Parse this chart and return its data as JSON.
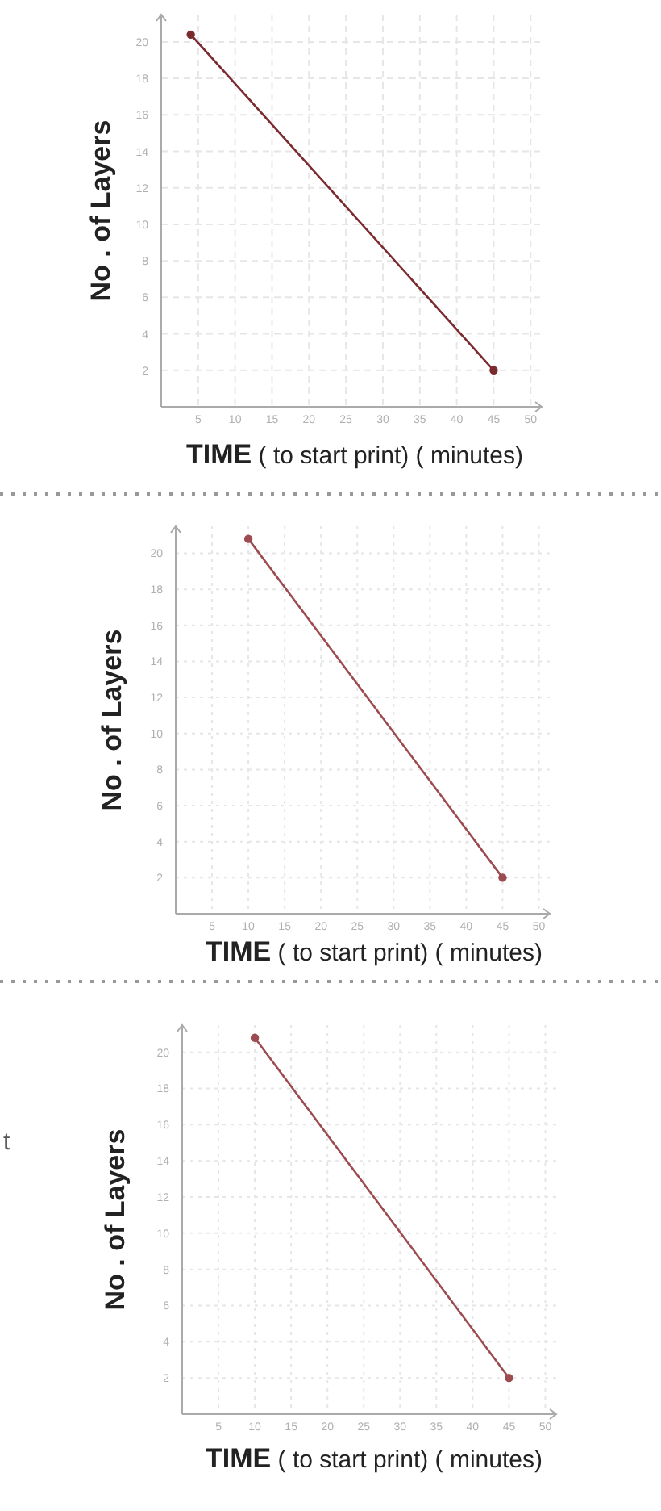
{
  "chart_data": [
    {
      "type": "line",
      "xlabel": "TIME ( to start print) ( minutes)",
      "ylabel": "No . of Layers",
      "xlim": [
        0,
        51.5
      ],
      "ylim": [
        0,
        21.5
      ],
      "xticks": [
        5,
        10,
        15,
        20,
        25,
        30,
        35,
        40,
        45,
        50
      ],
      "yticks": [
        2,
        4,
        6,
        8,
        10,
        12,
        14,
        16,
        18,
        20
      ],
      "grid": true,
      "marker": "circle",
      "line_style": "solid",
      "series": [
        {
          "color": "#7b2b2e",
          "x": [
            4,
            45
          ],
          "values": [
            20.4,
            2
          ]
        }
      ]
    },
    {
      "type": "line",
      "xlabel": "TIME ( to start print) ( minutes)",
      "ylabel": "No . of Layers",
      "xlim": [
        0,
        51.5
      ],
      "ylim": [
        0,
        21.5
      ],
      "xticks": [
        5,
        10,
        15,
        20,
        25,
        30,
        35,
        40,
        45,
        50
      ],
      "yticks": [
        2,
        4,
        6,
        8,
        10,
        12,
        14,
        16,
        18,
        20
      ],
      "grid": true,
      "marker": "circle",
      "line_style": "solid",
      "series": [
        {
          "color": "#9c4c50",
          "x": [
            10,
            45
          ],
          "values": [
            20.8,
            2
          ]
        }
      ]
    },
    {
      "type": "line",
      "xlabel": "TIME ( to start print) ( minutes)",
      "ylabel": "No . of Layers",
      "xlim": [
        0,
        51.5
      ],
      "ylim": [
        0,
        21.5
      ],
      "xticks": [
        5,
        10,
        15,
        20,
        25,
        30,
        35,
        40,
        45,
        50
      ],
      "yticks": [
        2,
        4,
        6,
        8,
        10,
        12,
        14,
        16,
        18,
        20
      ],
      "grid": true,
      "marker": "circle",
      "line_style": "solid",
      "annotations": [
        "t"
      ],
      "series": [
        {
          "color": "#9c4c50",
          "x": [
            10,
            45
          ],
          "values": [
            20.8,
            2
          ]
        }
      ]
    }
  ]
}
